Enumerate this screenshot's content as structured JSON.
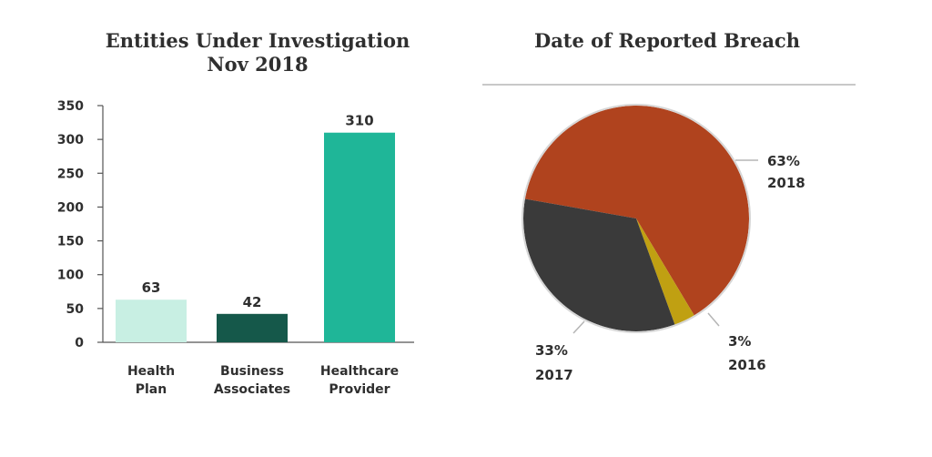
{
  "chart_data": [
    {
      "type": "bar",
      "title_lines": [
        "Entities Under Investigation",
        "Nov 2018"
      ],
      "categories": [
        [
          "Health",
          "Plan"
        ],
        [
          "Business",
          "Associates"
        ],
        [
          "Healthcare",
          "Provider"
        ]
      ],
      "values": [
        63,
        42,
        310
      ],
      "value_labels": [
        "63",
        "42",
        "310"
      ],
      "colors": [
        "#c8efe3",
        "#15584a",
        "#1fb698"
      ],
      "ylim": [
        0,
        350
      ],
      "yticks": [
        "0",
        "50",
        "100",
        "150",
        "200",
        "250",
        "300",
        "350"
      ],
      "xlabel": "",
      "ylabel": "",
      "grid": false,
      "legend": "none"
    },
    {
      "type": "pie",
      "title": "Date of Reported Breach",
      "slices": [
        {
          "percent_label": "63%",
          "year_label": "2018",
          "value": 63,
          "color": "#b0431e"
        },
        {
          "percent_label": "3%",
          "year_label": "2016",
          "value": 3,
          "color": "#c0a012"
        },
        {
          "percent_label": "33%",
          "year_label": "2017",
          "value": 33,
          "color": "#3a3a3a"
        }
      ],
      "rim_color": "#d6d6d6",
      "divider_color": "#c8c8c8",
      "legend": "none"
    }
  ]
}
